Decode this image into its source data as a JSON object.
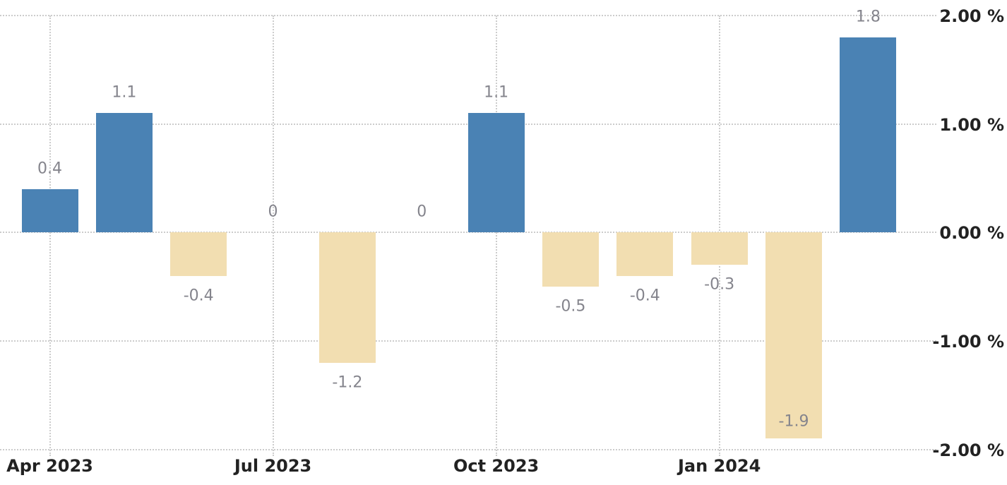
{
  "chart_data": {
    "type": "bar",
    "title": "",
    "unit": "%",
    "ylim": [
      -2,
      2
    ],
    "grid": "dotted",
    "legend": "none",
    "axis_side": "right",
    "y_ticks": [
      {
        "value": 2,
        "label": "2.00 %"
      },
      {
        "value": 1,
        "label": "1.00 %"
      },
      {
        "value": 0,
        "label": "0.00 %"
      },
      {
        "value": -1,
        "label": "-1.00 %"
      },
      {
        "value": -2,
        "label": "-2.00 %"
      }
    ],
    "x_ticks": [
      {
        "month_index": 0,
        "label": "Apr 2023"
      },
      {
        "month_index": 3,
        "label": "Jul 2023"
      },
      {
        "month_index": 6,
        "label": "Oct 2023"
      },
      {
        "month_index": 9,
        "label": "Jan 2024"
      }
    ],
    "points": [
      {
        "month_index": 0,
        "value": 0.4,
        "label": "0.4"
      },
      {
        "month_index": 1,
        "value": 1.1,
        "label": "1.1"
      },
      {
        "month_index": 2,
        "value": -0.4,
        "label": "-0.4"
      },
      {
        "month_index": 3,
        "value": 0,
        "label": "0"
      },
      {
        "month_index": 4,
        "value": -1.2,
        "label": "-1.2"
      },
      {
        "month_index": 5,
        "value": 0,
        "label": "0"
      },
      {
        "month_index": 6,
        "value": 1.1,
        "label": "1.1"
      },
      {
        "month_index": 7,
        "value": -0.5,
        "label": "-0.5"
      },
      {
        "month_index": 8,
        "value": -0.4,
        "label": "-0.4"
      },
      {
        "month_index": 9,
        "value": -0.3,
        "label": "-0.3"
      },
      {
        "month_index": 10,
        "value": -1.9,
        "label": "-1.9"
      },
      {
        "month_index": 11,
        "value": 1.8,
        "label": "1.8"
      }
    ],
    "colors": {
      "positive_bar": "#4A82B4",
      "negative_bar": "#F2DEB1",
      "gridline": "#cccccc",
      "axis_text": "#222222",
      "data_label_text": "#84848C",
      "background": "#ffffff"
    }
  }
}
